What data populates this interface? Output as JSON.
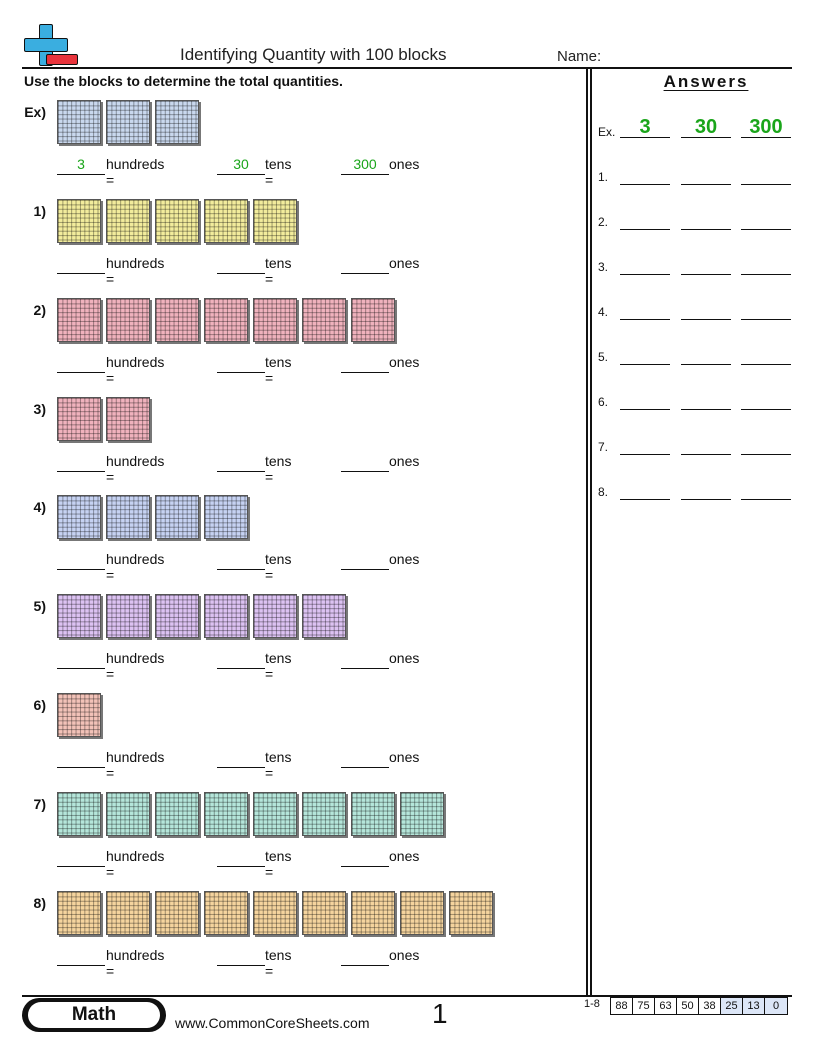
{
  "header": {
    "title": "Identifying Quantity with 100 blocks",
    "name_label": "Name:",
    "instructions": "Use the blocks to determine the total quantities."
  },
  "labels": {
    "hundreds": "hundreds =",
    "tens": "tens =",
    "ones": "ones"
  },
  "example": {
    "label": "Ex)",
    "blocks": 3,
    "color": "#c9d8ee",
    "hundreds": "3",
    "tens": "30",
    "ones": "300"
  },
  "problems": [
    {
      "label": "1)",
      "blocks": 5,
      "color": "#f2ec9c"
    },
    {
      "label": "2)",
      "blocks": 7,
      "color": "#f0b2bd"
    },
    {
      "label": "3)",
      "blocks": 2,
      "color": "#f0b2bd"
    },
    {
      "label": "4)",
      "blocks": 4,
      "color": "#c6d2f2"
    },
    {
      "label": "5)",
      "blocks": 6,
      "color": "#dcc2f2"
    },
    {
      "label": "6)",
      "blocks": 1,
      "color": "#f2c2b8"
    },
    {
      "label": "7)",
      "blocks": 8,
      "color": "#b5e6da"
    },
    {
      "label": "8)",
      "blocks": 9,
      "color": "#f5d49e"
    }
  ],
  "answers": {
    "title": "Answers",
    "example": {
      "label": "Ex.",
      "values": [
        "3",
        "30",
        "300"
      ]
    },
    "rows": [
      "1.",
      "2.",
      "3.",
      "4.",
      "5.",
      "6.",
      "7.",
      "8."
    ]
  },
  "footer": {
    "subject": "Math",
    "site": "www.CommonCoreSheets.com",
    "page": "1",
    "score_label": "1-8",
    "scores": [
      "88",
      "75",
      "63",
      "50",
      "38",
      "25",
      "13",
      "0"
    ],
    "highlight_from": 5,
    "highlight_color": "#dce6f7"
  },
  "colors": {
    "answer_green": "#1aa51a",
    "logo_blue": "#3aaee0",
    "logo_red": "#e8343c"
  }
}
